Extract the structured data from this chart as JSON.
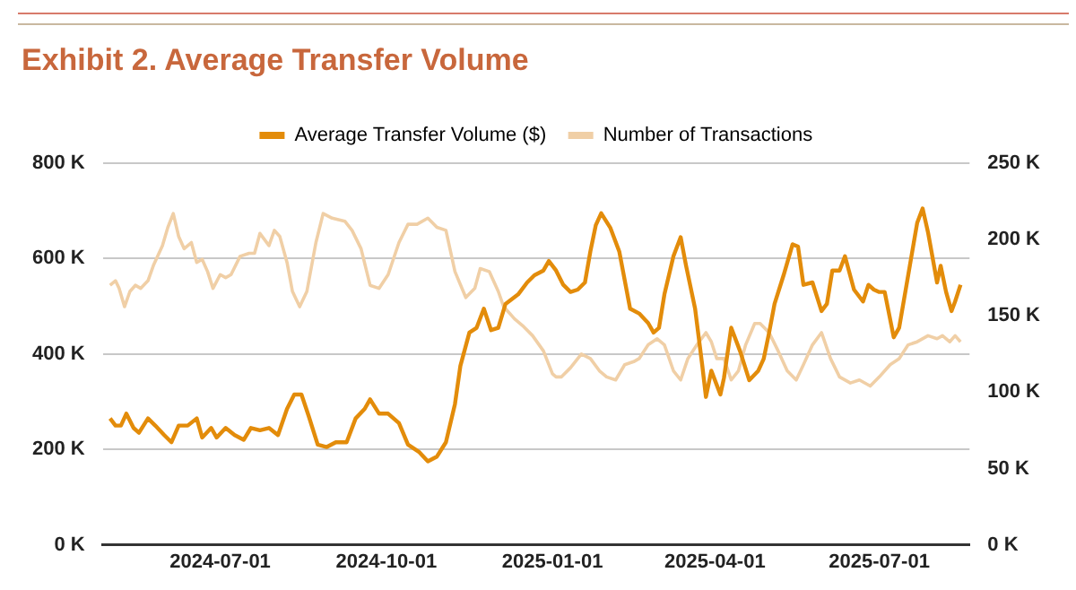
{
  "chart_data": {
    "type": "line",
    "title": "Exhibit 2. Average Transfer Volume",
    "legend": "top",
    "grid": "y",
    "marker": "none",
    "line_style": "solid",
    "xlim": [
      "2024-04-27",
      "2025-08-20"
    ],
    "xticks": [
      "2024-07-01",
      "2024-10-01",
      "2025-01-01",
      "2025-04-01",
      "2025-07-01"
    ],
    "ylim": [
      0,
      800000
    ],
    "yticks": [
      {
        "value": 0,
        "label": "0 K"
      },
      {
        "value": 200000,
        "label": "200 K"
      },
      {
        "value": 400000,
        "label": "400 K"
      },
      {
        "value": 600000,
        "label": "600 K"
      },
      {
        "value": 800000,
        "label": "800 K"
      }
    ],
    "y2lim": [
      0,
      250000
    ],
    "y2ticks": [
      {
        "value": 0,
        "label": "0 K"
      },
      {
        "value": 50000,
        "label": "50 K"
      },
      {
        "value": 100000,
        "label": "100 K"
      },
      {
        "value": 150000,
        "label": "150 K"
      },
      {
        "value": 200000,
        "label": "200 K"
      },
      {
        "value": 250000,
        "label": "250 K"
      }
    ],
    "series": [
      {
        "name": "Number of Transactions",
        "color": "#f0cfa6",
        "axis": "y2",
        "x": [
          "2024-05-01",
          "2024-05-04",
          "2024-05-06",
          "2024-05-09",
          "2024-05-12",
          "2024-05-15",
          "2024-05-18",
          "2024-05-22",
          "2024-05-25",
          "2024-05-30",
          "2024-06-02",
          "2024-06-05",
          "2024-06-08",
          "2024-06-11",
          "2024-06-15",
          "2024-06-18",
          "2024-06-21",
          "2024-06-24",
          "2024-06-27",
          "2024-07-01",
          "2024-07-04",
          "2024-07-07",
          "2024-07-12",
          "2024-07-17",
          "2024-07-20",
          "2024-07-23",
          "2024-07-28",
          "2024-07-31",
          "2024-08-03",
          "2024-08-07",
          "2024-08-10",
          "2024-08-14",
          "2024-08-18",
          "2024-08-23",
          "2024-08-27",
          "2024-09-01",
          "2024-09-08",
          "2024-09-12",
          "2024-09-17",
          "2024-09-22",
          "2024-09-27",
          "2024-10-02",
          "2024-10-08",
          "2024-10-13",
          "2024-10-18",
          "2024-10-24",
          "2024-10-29",
          "2024-11-03",
          "2024-11-08",
          "2024-11-14",
          "2024-11-19",
          "2024-11-22",
          "2024-11-27",
          "2024-12-02",
          "2024-12-05",
          "2024-12-11",
          "2024-12-16",
          "2024-12-21",
          "2024-12-27",
          "2025-01-01",
          "2025-01-03",
          "2025-01-06",
          "2025-01-11",
          "2025-01-17",
          "2025-01-22",
          "2025-01-27",
          "2025-01-31",
          "2025-02-05",
          "2025-02-10",
          "2025-02-15",
          "2025-02-18",
          "2025-02-23",
          "2025-02-28",
          "2025-03-04",
          "2025-03-09",
          "2025-03-13",
          "2025-03-17",
          "2025-03-22",
          "2025-03-27",
          "2025-03-30",
          "2025-04-02",
          "2025-04-06",
          "2025-04-10",
          "2025-04-14",
          "2025-04-18",
          "2025-04-23",
          "2025-04-26",
          "2025-05-01",
          "2025-05-06",
          "2025-05-11",
          "2025-05-16",
          "2025-05-20",
          "2025-05-25",
          "2025-05-30",
          "2025-06-04",
          "2025-06-09",
          "2025-06-15",
          "2025-06-20",
          "2025-06-26",
          "2025-07-01",
          "2025-07-07",
          "2025-07-12",
          "2025-07-17",
          "2025-07-22",
          "2025-07-28",
          "2025-08-02",
          "2025-08-05",
          "2025-08-09",
          "2025-08-12",
          "2025-08-15"
        ],
        "values": [
          170000,
          173000,
          168000,
          156000,
          166000,
          170000,
          168000,
          173000,
          183000,
          196000,
          208000,
          217000,
          202000,
          194000,
          198000,
          185000,
          187000,
          179000,
          168000,
          177000,
          175000,
          177000,
          189000,
          191000,
          191000,
          204000,
          196000,
          206000,
          202000,
          185000,
          166000,
          156000,
          166000,
          198000,
          217000,
          214000,
          212000,
          206000,
          194000,
          170000,
          168000,
          177000,
          198000,
          210000,
          210000,
          214000,
          208000,
          206000,
          179000,
          162000,
          168000,
          181000,
          179000,
          166000,
          156000,
          148000,
          143000,
          137000,
          127000,
          112000,
          110000,
          110000,
          116000,
          125000,
          122000,
          114000,
          110000,
          108000,
          118000,
          120000,
          122000,
          131000,
          135000,
          131000,
          114000,
          108000,
          122000,
          131000,
          139000,
          133000,
          122000,
          122000,
          108000,
          114000,
          131000,
          145000,
          145000,
          139000,
          127000,
          114000,
          108000,
          118000,
          131000,
          139000,
          122000,
          110000,
          106000,
          108000,
          104000,
          110000,
          118000,
          122000,
          131000,
          133000,
          137000,
          135000,
          137000,
          133000,
          137000,
          133000
        ]
      },
      {
        "name": "Average Transfer Volume ($)",
        "color": "#e38c0a",
        "x": [
          "2024-05-01",
          "2024-05-04",
          "2024-05-07",
          "2024-05-10",
          "2024-05-14",
          "2024-05-17",
          "2024-05-22",
          "2024-05-26",
          "2024-05-31",
          "2024-06-04",
          "2024-06-08",
          "2024-06-13",
          "2024-06-18",
          "2024-06-21",
          "2024-06-26",
          "2024-06-29",
          "2024-07-04",
          "2024-07-09",
          "2024-07-14",
          "2024-07-18",
          "2024-07-23",
          "2024-07-28",
          "2024-08-02",
          "2024-08-07",
          "2024-08-11",
          "2024-08-15",
          "2024-08-19",
          "2024-08-24",
          "2024-08-29",
          "2024-09-03",
          "2024-09-09",
          "2024-09-14",
          "2024-09-19",
          "2024-09-22",
          "2024-09-27",
          "2024-10-02",
          "2024-10-08",
          "2024-10-13",
          "2024-10-19",
          "2024-10-24",
          "2024-10-29",
          "2024-11-03",
          "2024-11-08",
          "2024-11-11",
          "2024-11-16",
          "2024-11-20",
          "2024-11-24",
          "2024-11-28",
          "2024-12-02",
          "2024-12-06",
          "2024-12-13",
          "2024-12-18",
          "2024-12-22",
          "2024-12-27",
          "2024-12-30",
          "2025-01-03",
          "2025-01-07",
          "2025-01-11",
          "2025-01-15",
          "2025-01-19",
          "2025-01-22",
          "2025-01-25",
          "2025-01-28",
          "2025-02-02",
          "2025-02-07",
          "2025-02-13",
          "2025-02-18",
          "2025-02-23",
          "2025-02-26",
          "2025-03-01",
          "2025-03-04",
          "2025-03-09",
          "2025-03-13",
          "2025-03-16",
          "2025-03-21",
          "2025-03-25",
          "2025-03-27",
          "2025-03-30",
          "2025-04-02",
          "2025-04-04",
          "2025-04-06",
          "2025-04-10",
          "2025-04-15",
          "2025-04-20",
          "2025-04-25",
          "2025-04-28",
          "2025-05-01",
          "2025-05-04",
          "2025-05-09",
          "2025-05-14",
          "2025-05-17",
          "2025-05-20",
          "2025-05-25",
          "2025-05-30",
          "2025-06-02",
          "2025-06-05",
          "2025-06-09",
          "2025-06-12",
          "2025-06-17",
          "2025-06-22",
          "2025-06-25",
          "2025-06-28",
          "2025-07-01",
          "2025-07-04",
          "2025-07-09",
          "2025-07-12",
          "2025-07-17",
          "2025-07-22",
          "2025-07-25",
          "2025-07-28",
          "2025-08-02",
          "2025-08-04",
          "2025-08-07",
          "2025-08-10",
          "2025-08-12",
          "2025-08-15"
        ],
        "values": [
          265000,
          250000,
          250000,
          275000,
          245000,
          235000,
          265000,
          250000,
          230000,
          215000,
          250000,
          250000,
          265000,
          225000,
          245000,
          225000,
          245000,
          230000,
          220000,
          245000,
          240000,
          245000,
          230000,
          285000,
          315000,
          315000,
          270000,
          210000,
          205000,
          215000,
          215000,
          265000,
          285000,
          305000,
          275000,
          275000,
          255000,
          210000,
          195000,
          175000,
          185000,
          215000,
          295000,
          375000,
          445000,
          455000,
          495000,
          450000,
          455000,
          505000,
          525000,
          550000,
          565000,
          575000,
          595000,
          575000,
          545000,
          530000,
          535000,
          550000,
          615000,
          670000,
          695000,
          665000,
          615000,
          495000,
          485000,
          465000,
          445000,
          455000,
          525000,
          605000,
          645000,
          585000,
          495000,
          375000,
          310000,
          365000,
          335000,
          315000,
          350000,
          455000,
          405000,
          345000,
          365000,
          390000,
          445000,
          505000,
          565000,
          630000,
          625000,
          545000,
          550000,
          490000,
          505000,
          575000,
          575000,
          605000,
          535000,
          510000,
          545000,
          535000,
          530000,
          530000,
          435000,
          455000,
          565000,
          675000,
          705000,
          655000,
          550000,
          585000,
          530000,
          490000,
          510000,
          545000
        ]
      }
    ]
  }
}
